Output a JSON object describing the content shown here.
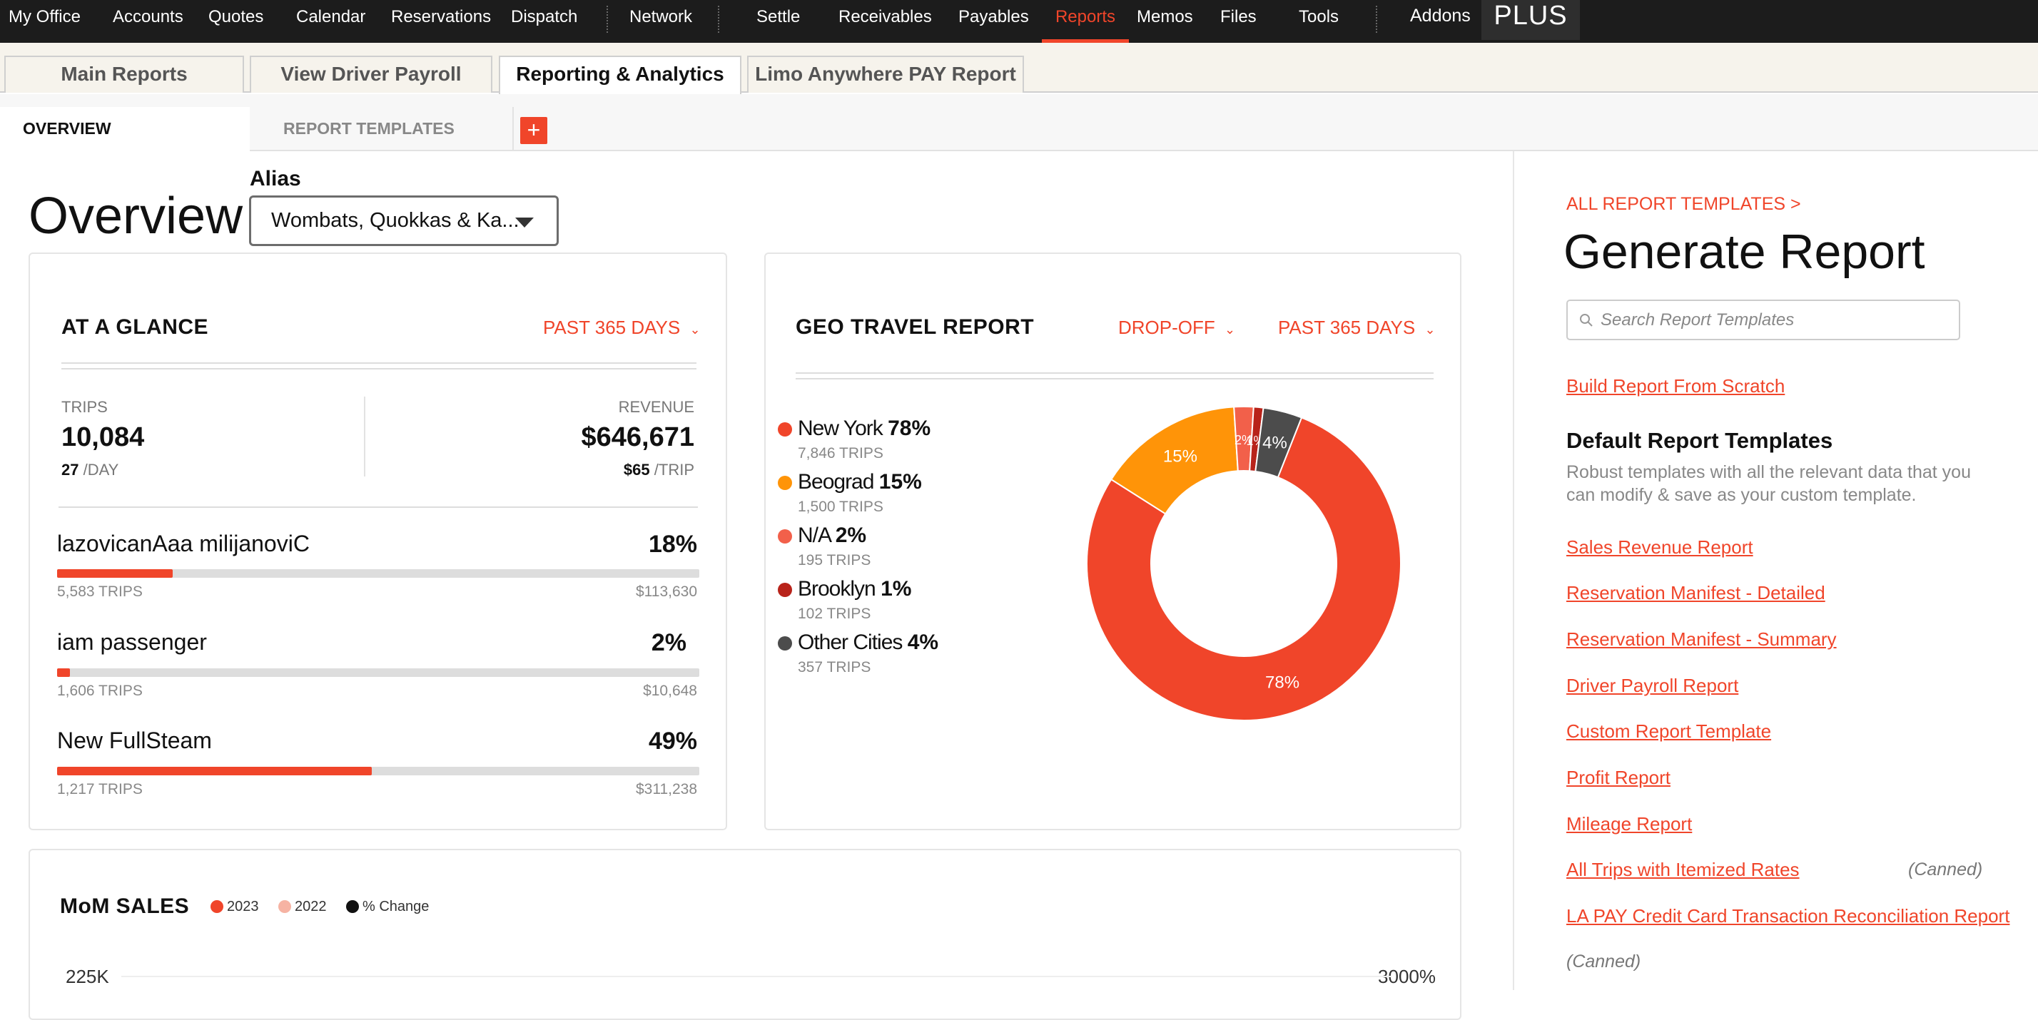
{
  "topnav": {
    "items": [
      "My Office",
      "Accounts",
      "Quotes",
      "Calendar",
      "Reservations",
      "Dispatch",
      "Network",
      "Settle",
      "Receivables",
      "Payables",
      "Reports",
      "Memos",
      "Files",
      "Tools"
    ],
    "addons": "Addons",
    "plus": "PLUS",
    "active": "Reports"
  },
  "subtabs": [
    "Main Reports",
    "View Driver Payroll",
    "Reporting & Analytics",
    "Limo Anywhere PAY Report"
  ],
  "innertabs": {
    "overview": "OVERVIEW",
    "templates": "REPORT TEMPLATES",
    "add": "+"
  },
  "overview": {
    "title": "Overview",
    "alias_label": "Alias",
    "alias_value": "Wombats, Quokkas & Ka..."
  },
  "glance": {
    "title": "AT A GLANCE",
    "range": "PAST 365 DAYS",
    "trips_label": "TRIPS",
    "trips_value": "10,084",
    "trips_per_day_num": "27",
    "trips_per_day_unit": "/DAY",
    "revenue_label": "REVENUE",
    "revenue_value": "$646,671",
    "revenue_per_trip_num": "$65",
    "revenue_per_trip_unit": "/TRIP",
    "passengers": [
      {
        "name": "lazovicanAaa milijanoviC",
        "pct": "18%",
        "fill": 18,
        "trips": "5,583 TRIPS",
        "revenue": "$113,630"
      },
      {
        "name": "iam passenger",
        "pct": "2%",
        "fill": 2,
        "trips": "1,606 TRIPS",
        "revenue": "$10,648"
      },
      {
        "name": "New FullSteam",
        "pct": "49%",
        "fill": 49,
        "trips": "1,217 TRIPS",
        "revenue": "$311,238"
      }
    ]
  },
  "geo": {
    "title": "GEO TRAVEL REPORT",
    "filter": "DROP-OFF",
    "range": "PAST 365 DAYS",
    "items": [
      {
        "name": "New York",
        "pct": "78%",
        "trips": "7,846 TRIPS",
        "color": "#f0452a"
      },
      {
        "name": "Beograd",
        "pct": "15%",
        "trips": "1,500 TRIPS",
        "color": "#ff9408"
      },
      {
        "name": "N/A",
        "pct": "2%",
        "trips": "195 TRIPS",
        "color": "#f2604a"
      },
      {
        "name": "Brooklyn",
        "pct": "1%",
        "trips": "102 TRIPS",
        "color": "#b8231a"
      },
      {
        "name": "Other Cities",
        "pct": "4%",
        "trips": "357 TRIPS",
        "color": "#4c4c4c"
      }
    ]
  },
  "chart_data": {
    "type": "pie",
    "labels": [
      "New York",
      "Beograd",
      "N/A",
      "Brooklyn",
      "Other Cities"
    ],
    "values": [
      78,
      15,
      2,
      1,
      4
    ],
    "colors": [
      "#f0452a",
      "#ff9408",
      "#f2604a",
      "#b8231a",
      "#4c4c4c"
    ],
    "slice_labels": [
      "78%",
      "15%",
      "2%",
      "1%",
      "4%"
    ],
    "donut": true
  },
  "mom": {
    "title": "MoM SALES",
    "legend": [
      {
        "label": "2023",
        "color": "#f0452a"
      },
      {
        "label": "2022",
        "color": "#f6b3a3"
      },
      {
        "label": "% Change",
        "color": "#111111"
      }
    ],
    "y_left_top": "225K",
    "y_right_top": "3000%"
  },
  "report_panel": {
    "all_templates": "ALL REPORT TEMPLATES >",
    "title": "Generate Report",
    "search_placeholder": "Search Report Templates",
    "build_link": "Build Report From Scratch",
    "default_title": "Default Report Templates",
    "default_desc": "Robust templates with all the relevant data that you can modify & save as your custom template.",
    "templates": [
      "Sales Revenue Report",
      "Reservation Manifest - Detailed",
      "Reservation Manifest - Summary",
      "Driver Payroll Report",
      "Custom Report Template",
      "Profit Report",
      "Mileage Report",
      "All Trips with Itemized Rates",
      "LA PAY Credit Card Transaction Reconciliation Report"
    ],
    "canned": "(Canned)"
  }
}
